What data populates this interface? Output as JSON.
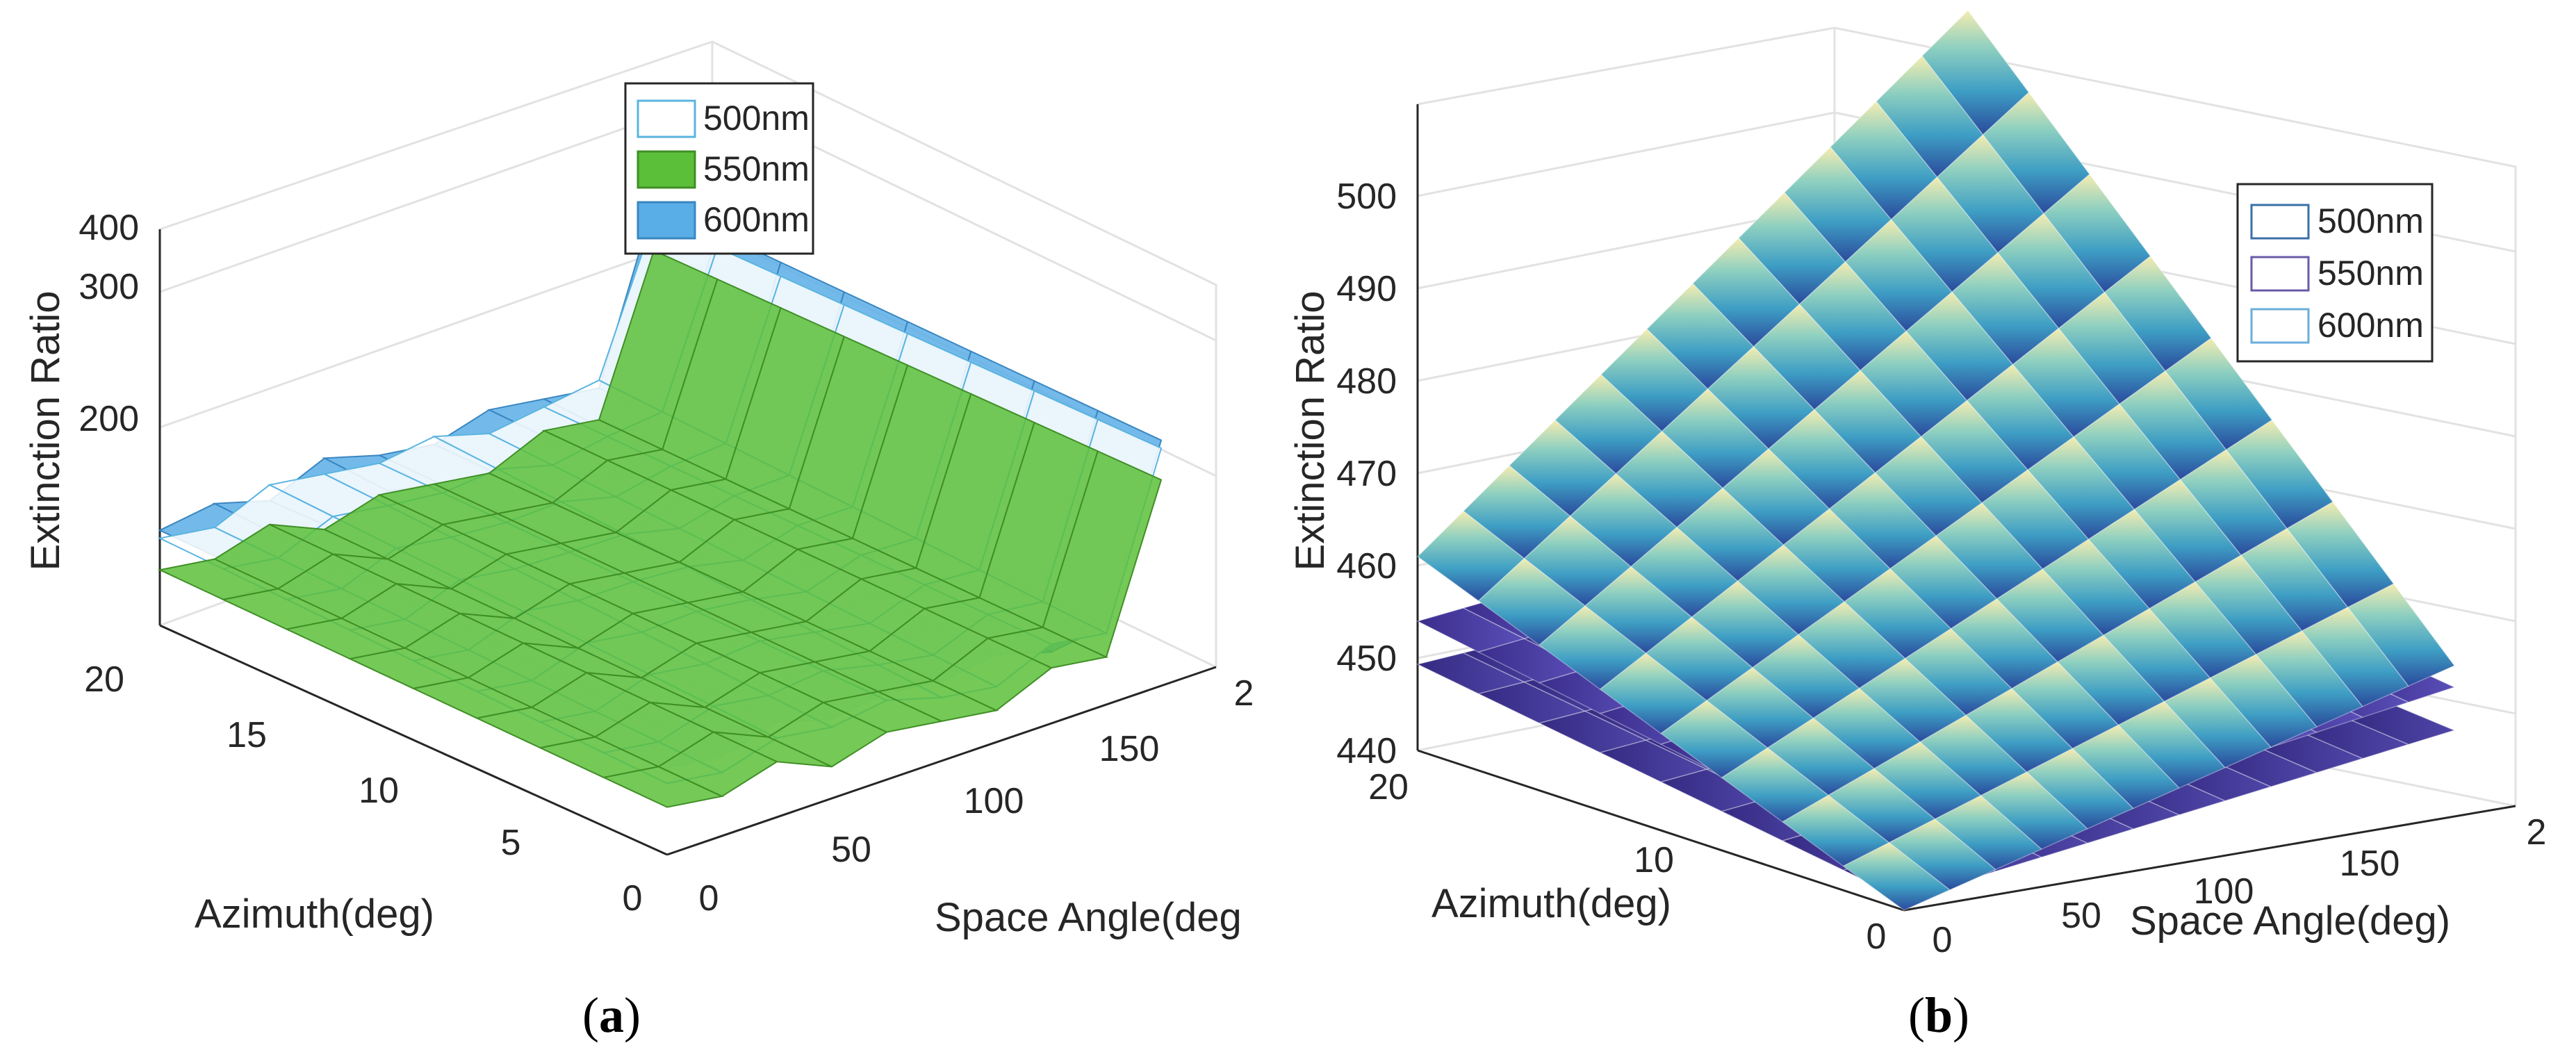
{
  "chart_data": [
    {
      "id": "a",
      "type": "surface",
      "caption": {
        "open": "(",
        "letter": "a",
        "close": ")"
      },
      "zlabel": "Extinction Ratio",
      "xlabel": "Space Angle(deg",
      "ylabel": "Azimuth(deg)",
      "zlim": [
        150,
        400
      ],
      "xlim": [
        0,
        200
      ],
      "ylim": [
        0,
        20
      ],
      "zticks": [
        "200",
        "300",
        "400"
      ],
      "xticks": [
        "0",
        "50",
        "100",
        "150",
        "2"
      ],
      "yticks": [
        "0",
        "5",
        "10",
        "15",
        "20"
      ],
      "legend_position": "top-center",
      "grid": true,
      "series": [
        {
          "name": "500nm",
          "color": "#ffffff",
          "edge": "#5ab4e0",
          "space_angle": [
            0,
            20,
            40,
            60,
            80,
            100,
            120,
            140,
            160,
            180
          ],
          "extinction_at_azimuth_20": [
            205,
            200,
            215,
            210,
            205,
            210,
            200,
            205,
            210,
            300
          ],
          "extinction_at_azimuth_0": [
            195,
            190,
            200,
            195,
            200,
            190,
            185,
            200,
            195,
            300
          ]
        },
        {
          "name": "550nm",
          "color": "#5cbf3a",
          "edge": "#3f8f25",
          "space_angle": [
            0,
            20,
            40,
            60,
            80,
            100,
            120,
            140,
            160,
            180
          ],
          "extinction_at_azimuth_20": [
            185,
            180,
            190,
            175,
            185,
            180,
            175,
            190,
            185,
            280
          ],
          "extinction_at_azimuth_0": [
            180,
            175,
            185,
            170,
            180,
            175,
            170,
            185,
            180,
            280
          ]
        },
        {
          "name": "600nm",
          "color": "#5aaee8",
          "edge": "#3a86c0",
          "space_angle": [
            0,
            20,
            40,
            60,
            80,
            100,
            120,
            140,
            160,
            180
          ],
          "extinction_at_azimuth_20": [
            210,
            215,
            205,
            220,
            210,
            205,
            215,
            210,
            205,
            310
          ],
          "extinction_at_azimuth_0": [
            205,
            200,
            210,
            200,
            205,
            200,
            205,
            195,
            200,
            305
          ]
        }
      ]
    },
    {
      "id": "b",
      "type": "surface",
      "caption": {
        "open": "(",
        "letter": "b",
        "close": ")"
      },
      "zlabel": "Extinction Ratio",
      "xlabel": "Space Angle(deg)",
      "ylabel": "Azimuth(deg)",
      "zlim": [
        440,
        500
      ],
      "xlim": [
        0,
        200
      ],
      "ylim": [
        0,
        20
      ],
      "zticks": [
        "440",
        "450",
        "460",
        "470",
        "480",
        "490",
        "500"
      ],
      "xticks": [
        "0",
        "50",
        "100",
        "150",
        "2"
      ],
      "yticks": [
        "0",
        "10",
        "20"
      ],
      "legend_position": "top-right",
      "grid": true,
      "series": [
        {
          "name": "500nm",
          "color": "#ffffff",
          "edge": "#3a6fa8",
          "corner_values": {
            "x0_y0": 440,
            "x180_y0": 454,
            "x0_y20": 458,
            "x180_y20": 500
          }
        },
        {
          "name": "550nm",
          "color": "#ffffff",
          "edge": "#6a5aa8",
          "corner_values": {
            "x0_y0": 444,
            "x180_y0": 452,
            "x0_y20": 452,
            "x180_y20": 458
          }
        },
        {
          "name": "600nm",
          "color": "#ffffff",
          "edge": "#6aaedc",
          "corner_values": {
            "x0_y0": 441,
            "x180_y0": 448,
            "x0_y20": 448,
            "x180_y20": 452
          }
        }
      ]
    }
  ]
}
